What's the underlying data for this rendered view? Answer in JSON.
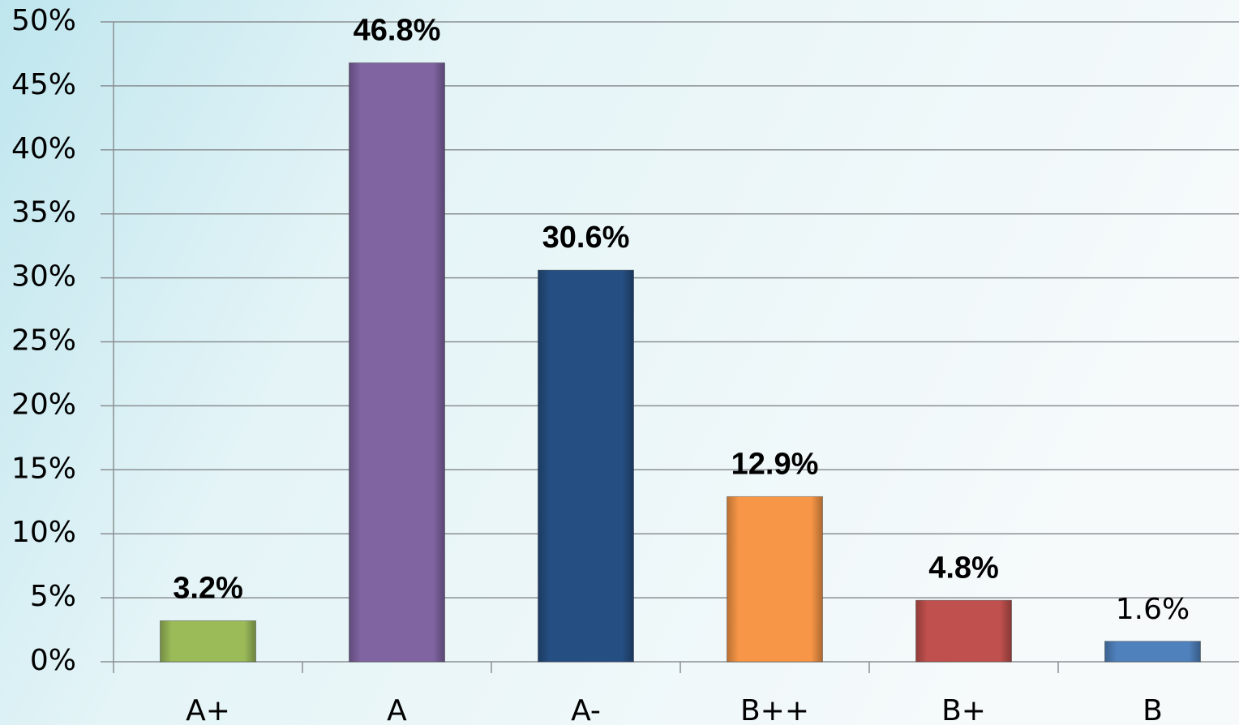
{
  "chart_data": {
    "type": "bar",
    "categories": [
      "A+",
      "A",
      "A-",
      "B++",
      "B+",
      "B"
    ],
    "values": [
      3.2,
      46.8,
      30.6,
      12.9,
      4.8,
      1.6
    ],
    "value_labels": [
      "3.2%",
      "46.8%",
      "30.6%",
      "12.9%",
      "4.8%",
      "1.6%"
    ],
    "colors": [
      "#9bbb59",
      "#8064a2",
      "#254e82",
      "#f79646",
      "#c0504d",
      "#4f81bd"
    ],
    "ylim": [
      0,
      50
    ],
    "yticks": [
      {
        "value": 0,
        "label": "0%"
      },
      {
        "value": 5,
        "label": "5%"
      },
      {
        "value": 10,
        "label": "10%"
      },
      {
        "value": 15,
        "label": "15%"
      },
      {
        "value": 20,
        "label": "20%"
      },
      {
        "value": 25,
        "label": "25%"
      },
      {
        "value": 30,
        "label": "30%"
      },
      {
        "value": 35,
        "label": "35%"
      },
      {
        "value": 40,
        "label": "40%"
      },
      {
        "value": 45,
        "label": "45%"
      },
      {
        "value": 50,
        "label": "50%"
      }
    ],
    "grid": true
  }
}
